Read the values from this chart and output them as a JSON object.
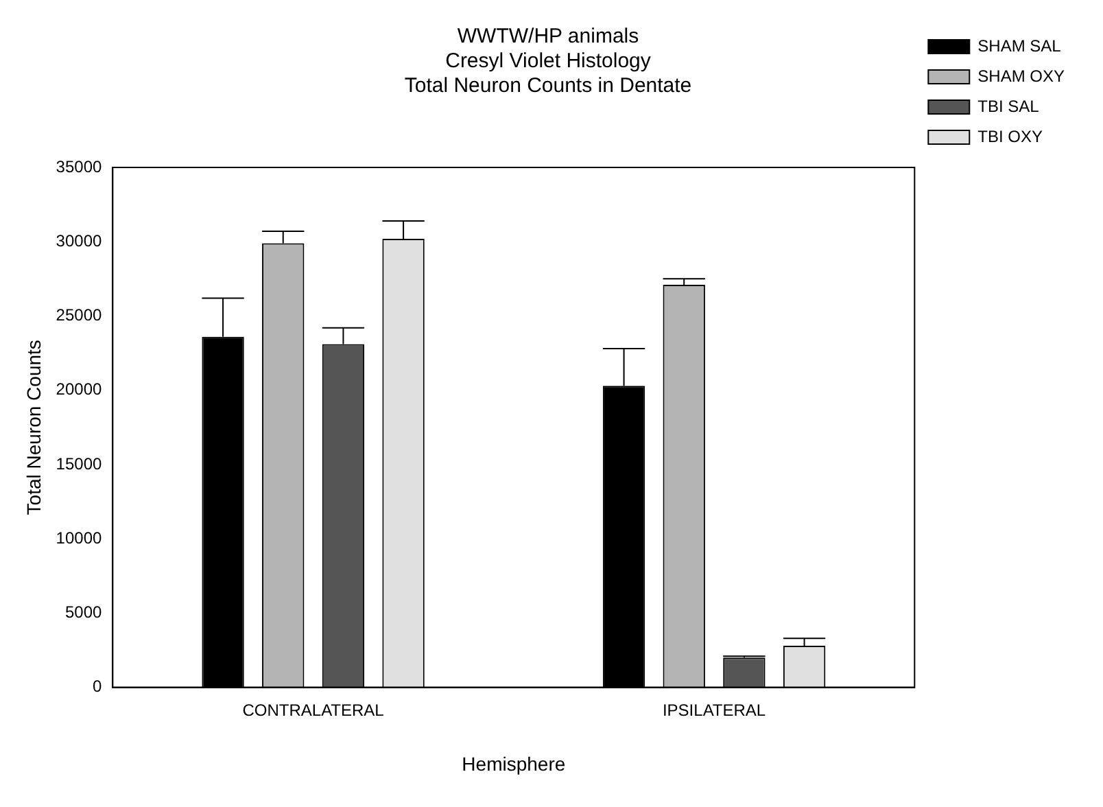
{
  "chart_data": {
    "type": "bar",
    "title": "WWTW/HP animals\nCresyl Violet Histology\nTotal Neuron Counts in Dentate",
    "xlabel": "Hemisphere",
    "ylabel": "Total Neuron Counts",
    "categories": [
      "CONTRALATERAL",
      "IPSILATERAL"
    ],
    "series": [
      {
        "name": "SHAM SAL",
        "color": "#000000",
        "values": [
          23600,
          20300
        ],
        "errors": [
          [
            23600,
            26200
          ],
          [
            20300,
            22800
          ]
        ]
      },
      {
        "name": "SHAM OXY",
        "color": "#b4b4b4",
        "values": [
          29900,
          27100
        ],
        "errors": [
          [
            29900,
            30700
          ],
          [
            27100,
            27500
          ]
        ]
      },
      {
        "name": "TBI SAL",
        "color": "#555555",
        "values": [
          23100,
          2000
        ],
        "errors": [
          [
            23100,
            24200
          ],
          [
            2000,
            2100
          ]
        ]
      },
      {
        "name": "TBI OXY",
        "color": "#e0e0e0",
        "values": [
          30200,
          2800
        ],
        "errors": [
          [
            30200,
            31400
          ],
          [
            2800,
            3300
          ]
        ]
      }
    ],
    "ylim": [
      0,
      35000
    ],
    "yticks": [
      0,
      5000,
      10000,
      15000,
      20000,
      25000,
      30000,
      35000
    ],
    "grid": false,
    "legend": "top right"
  }
}
